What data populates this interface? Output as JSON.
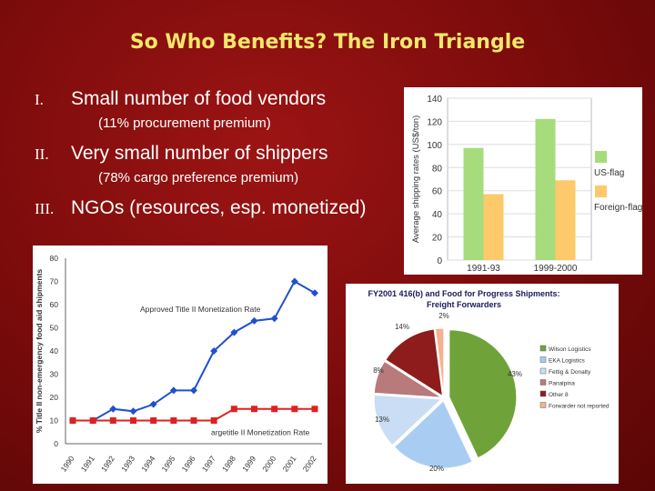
{
  "slide": {
    "title": "So Who Benefits? The Iron Triangle",
    "bullets": [
      {
        "num": "I.",
        "text": "Small number of food vendors",
        "sub": "(11% procurement premium)"
      },
      {
        "num": "II.",
        "text": "Very small number of shippers",
        "sub": "(78% cargo preference premium)"
      },
      {
        "num": "III.",
        "text": "NGOs (resources, esp. monetized)",
        "sub": ""
      }
    ]
  },
  "colors": {
    "background": "#8b1010",
    "title": "#f4e76a",
    "green": "#a6dc7c",
    "orange": "#fdc96a",
    "red": "#e02020",
    "blue": "#2050d0"
  },
  "chart_data": [
    {
      "type": "bar",
      "title": "",
      "ylabel": "Average shipping rates (US$/ton)",
      "xlabel": "",
      "categories": [
        "1991-93",
        "1999-2000"
      ],
      "series": [
        {
          "name": "US-flag",
          "values": [
            97,
            122
          ],
          "color": "#a6dc7c"
        },
        {
          "name": "Foreign-flag",
          "values": [
            57,
            69
          ],
          "color": "#fdc96a"
        }
      ],
      "ylim": [
        0,
        140
      ],
      "yticks": [
        0,
        20,
        40,
        60,
        80,
        100,
        120,
        140
      ],
      "legend": "right"
    },
    {
      "type": "line",
      "title": "",
      "ylabel": "% Title II non-emergency food aid shipments",
      "xlabel": "",
      "x": [
        "1990",
        "1991",
        "1992",
        "1993",
        "1994",
        "1995",
        "1996",
        "1997",
        "1998",
        "1999",
        "2000",
        "2001",
        "2002"
      ],
      "series": [
        {
          "name": "Approved Title II Monetization Rate",
          "values": [
            10,
            10,
            15,
            14,
            17,
            23,
            23,
            40,
            48,
            53,
            54,
            70,
            65
          ],
          "color": "#2050d0"
        },
        {
          "name": "argetitle II Monetization Rate",
          "values": [
            10,
            10,
            10,
            10,
            10,
            10,
            10,
            10,
            15,
            15,
            15,
            15,
            15
          ],
          "color": "#e02020"
        }
      ],
      "ylim": [
        0,
        80
      ],
      "yticks": [
        0,
        10,
        20,
        30,
        40,
        50,
        60,
        70,
        80
      ],
      "xtick_labels": [
        "1990",
        "1991",
        "1992",
        "1993",
        "1994",
        "1995",
        "1996",
        "1997",
        "1998",
        "1999",
        "2000",
        "2001",
        "2002"
      ]
    },
    {
      "type": "pie",
      "title": "FY2001 416(b) and Food for Progress Shipments: Freight Forwarders",
      "slices": [
        {
          "label": "Wilson Logistics",
          "value": 43,
          "color": "#6fa33a"
        },
        {
          "label": "EKA Logistics",
          "value": 20,
          "color": "#a9cdf2"
        },
        {
          "label": "Fettig & Donalty",
          "value": 13,
          "color": "#c9ddf4"
        },
        {
          "label": "Panalpina",
          "value": 8,
          "color": "#b87a7a"
        },
        {
          "label": "Other 8",
          "value": 14,
          "color": "#8e1c1c"
        },
        {
          "label": "Forwarder not reported",
          "value": 2,
          "color": "#f6b28e"
        }
      ],
      "data_labels": [
        "43%",
        "20%",
        "13%",
        "8%",
        "14%",
        "2%"
      ]
    }
  ]
}
